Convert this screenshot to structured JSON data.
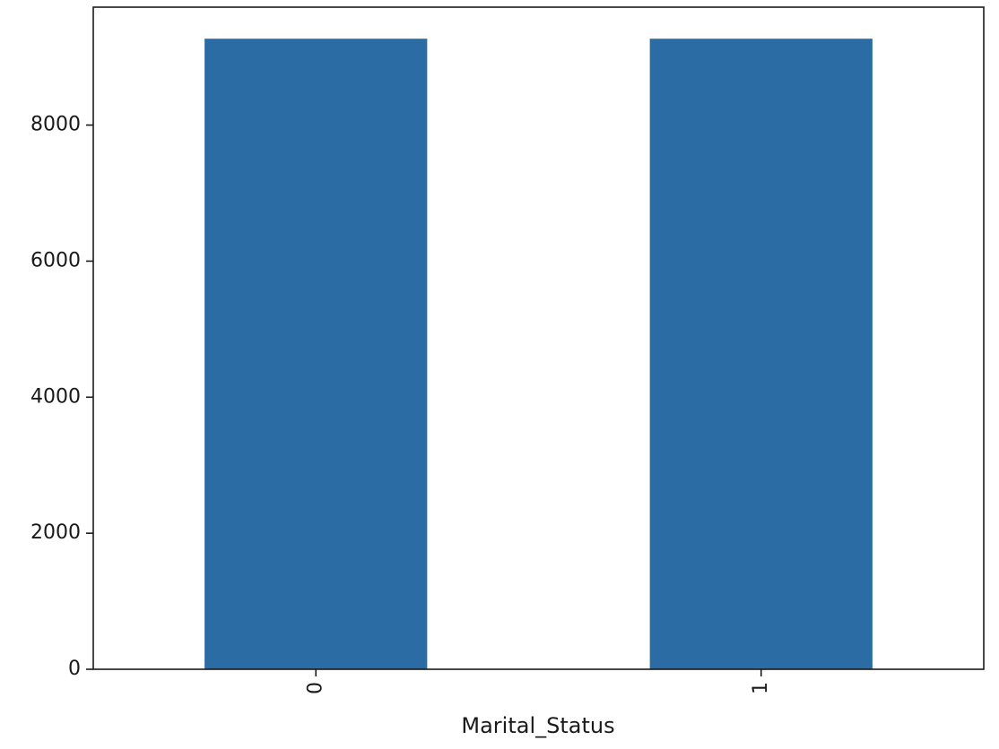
{
  "chart_data": {
    "type": "bar",
    "categories": [
      "0",
      "1"
    ],
    "values": [
      9270,
      9270
    ],
    "title": "",
    "xlabel": "Marital_Status",
    "ylabel": "",
    "ylim": [
      0,
      9733.5
    ],
    "yticks": [
      0,
      2000,
      4000,
      6000,
      8000
    ],
    "x_tick_rotation": "vertical",
    "grid": false,
    "legend": "none",
    "bar_color": "#2b6ca5"
  }
}
